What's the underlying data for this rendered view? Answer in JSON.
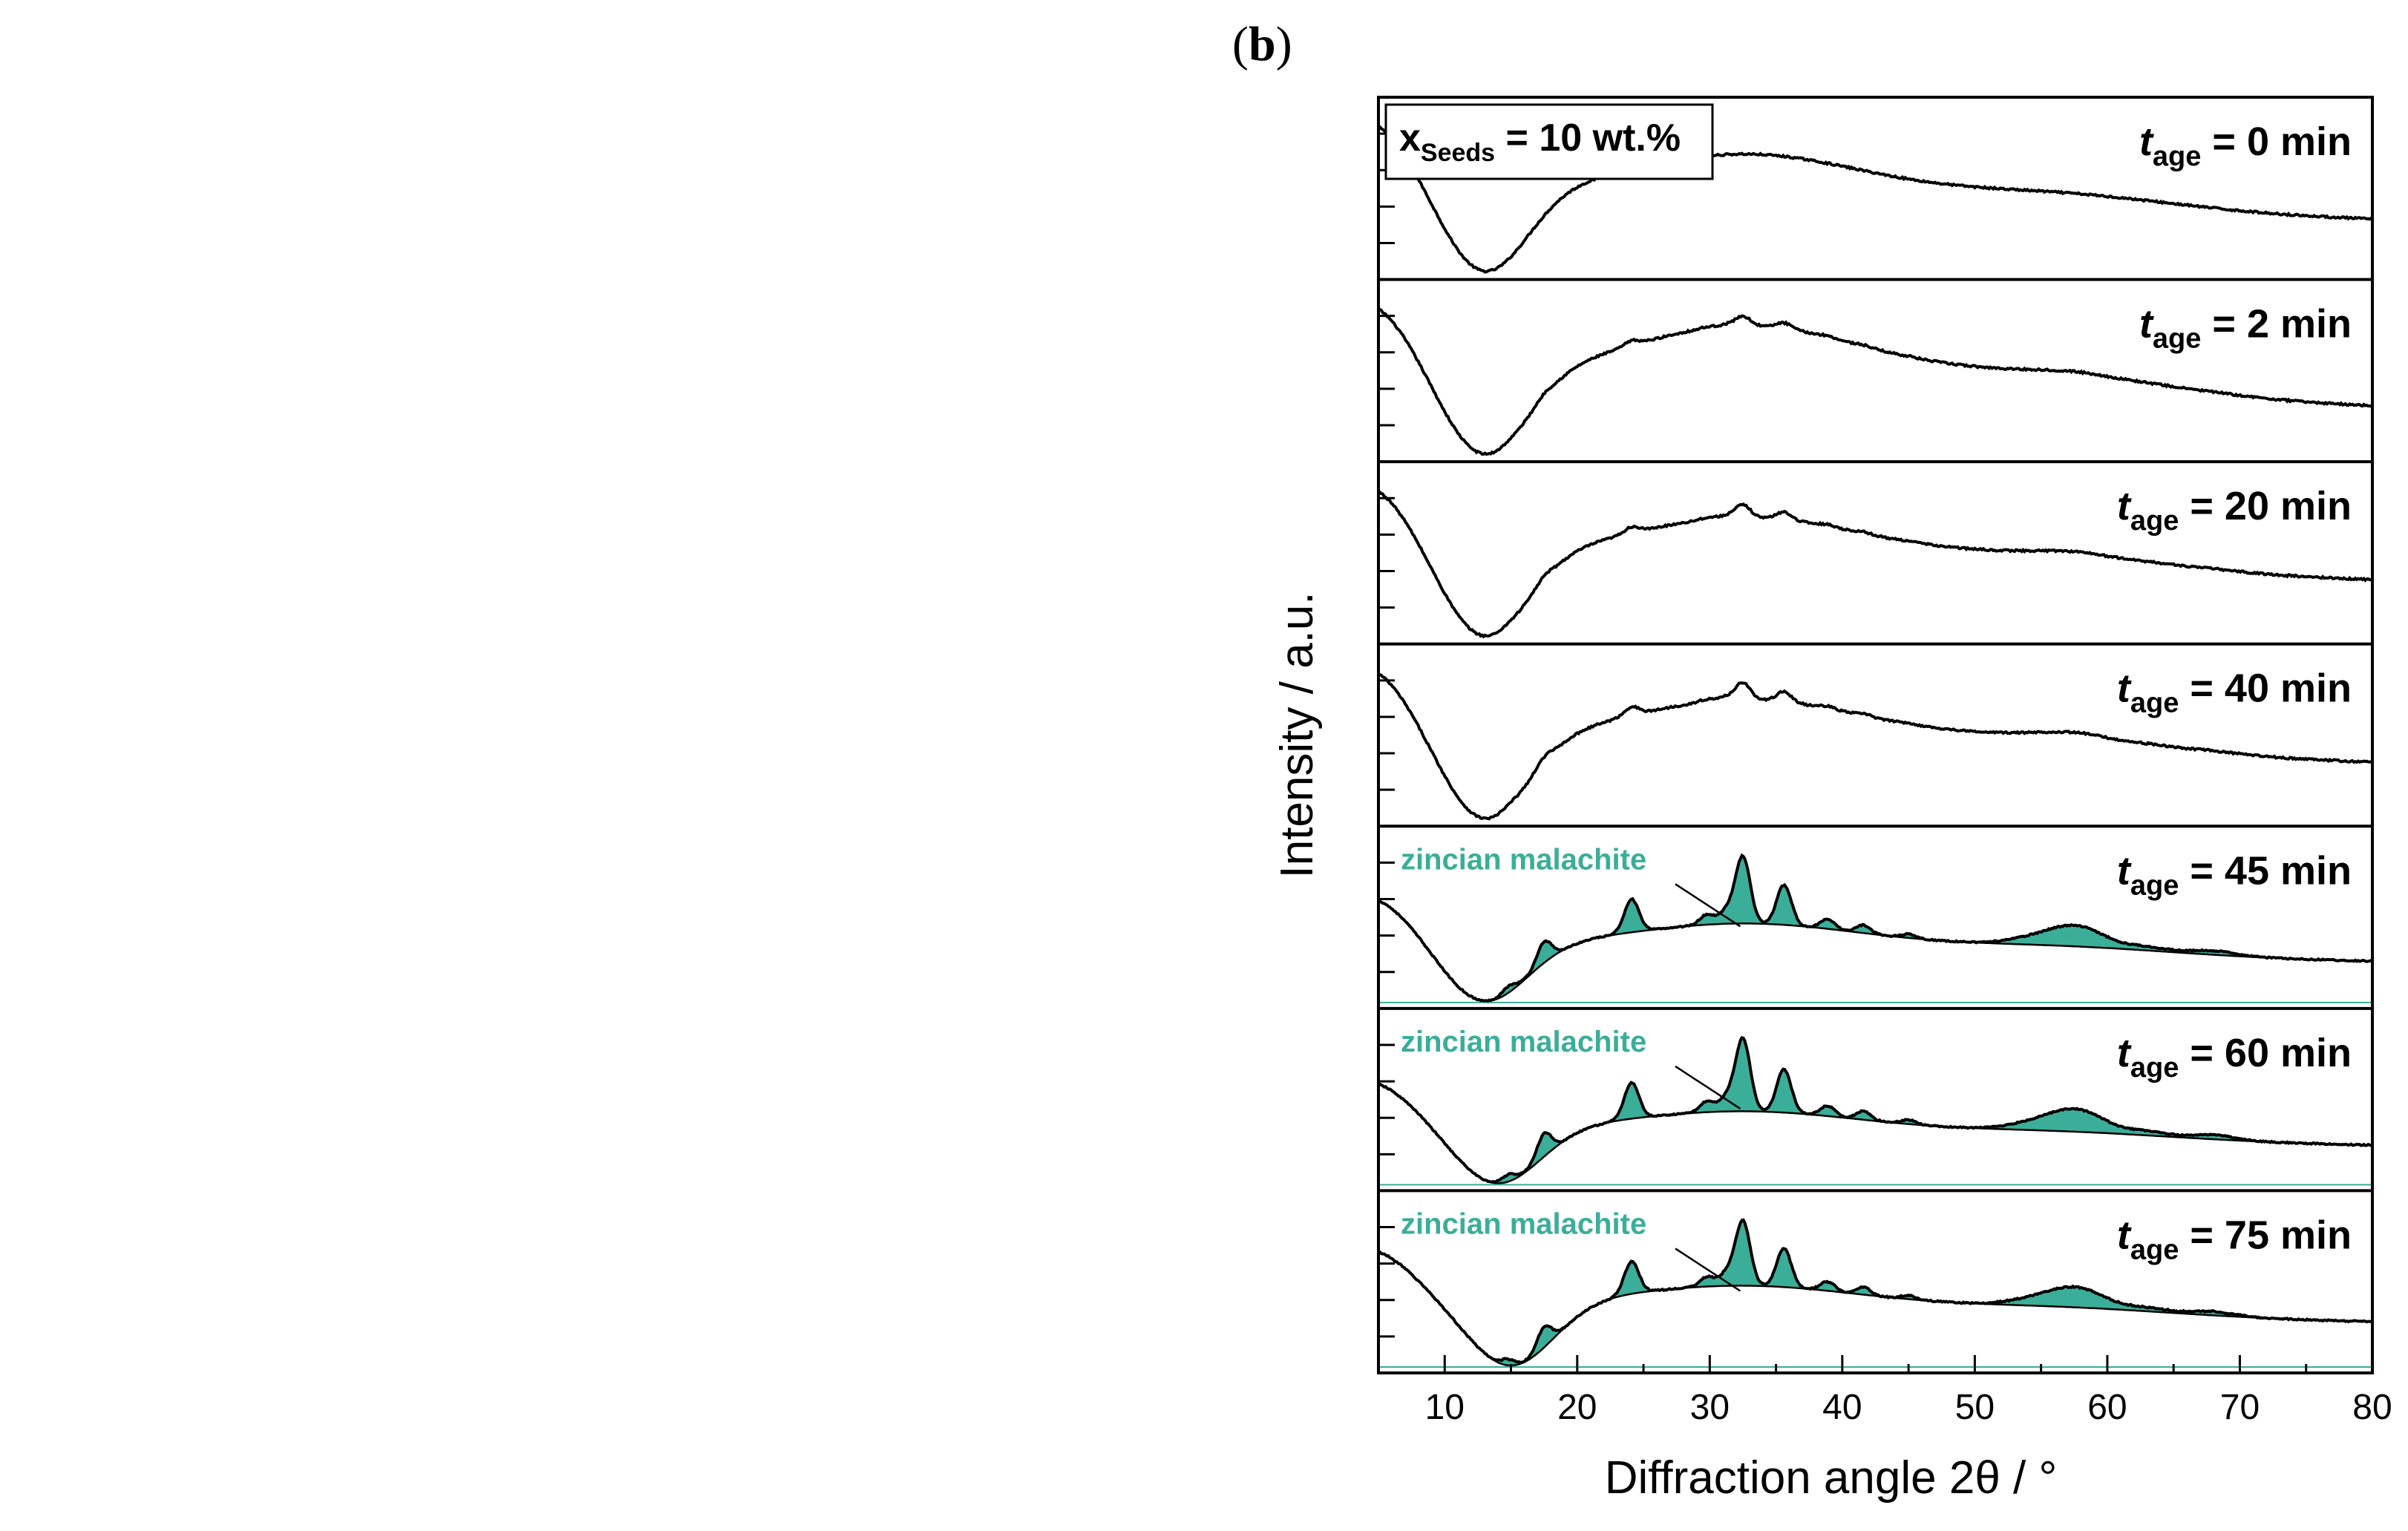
{
  "chart_data": [
    {
      "type": "line",
      "panel_label": "b",
      "seeds_label": "x",
      "seeds_sub": "Seeds",
      "seeds_value": "= 10 wt.%",
      "xlabel": "Diffraction angle 2θ / °",
      "ylabel": "Intensity / a.u.",
      "xlim": [
        5,
        80
      ],
      "xticks": [
        10,
        20,
        30,
        40,
        50,
        60,
        70,
        80
      ],
      "time_var": "t",
      "time_sub": "age",
      "series": [
        {
          "time_label": "= 0 min",
          "shaded": false,
          "pattern": {
            "amorphous": 0.55,
            "bias": 0.0,
            "hump": 0.3,
            "base_slope": -0.35,
            "dip": 13
          }
        },
        {
          "time_label": "= 2 min",
          "shaded": false,
          "pattern": {
            "amorphous": 0.62,
            "bias": 0.0,
            "hump": 0.38,
            "base_slope": -0.35,
            "dip": 13,
            "weak_peaks": 0.12
          }
        },
        {
          "time_label": "= 20 min",
          "shaded": false,
          "pattern": {
            "amorphous": 0.55,
            "bias": 0.0,
            "hump": 0.3,
            "base_slope": -0.3,
            "dip": 13,
            "weak_peaks": 0.16
          }
        },
        {
          "time_label": "= 40 min",
          "shaded": false,
          "pattern": {
            "amorphous": 0.55,
            "bias": 0.0,
            "hump": 0.3,
            "base_slope": -0.3,
            "dip": 13,
            "weak_peaks": 0.22
          }
        },
        {
          "time_label": "= 45 min",
          "shaded": true,
          "phase_label": "zincian malachite",
          "peak_scale": 0.62,
          "pattern": {
            "amorphous": 0.4,
            "bias": 0.0,
            "hump": 0.25,
            "base_slope": -0.4,
            "dip": 13
          }
        },
        {
          "time_label": "= 60 min",
          "shaded": true,
          "phase_label": "zincian malachite",
          "peak_scale": 0.7,
          "pattern": {
            "amorphous": 0.38,
            "bias": 0.0,
            "hump": 0.22,
            "base_slope": -0.45,
            "dip": 14
          }
        },
        {
          "time_label": "= 75 min",
          "shaded": true,
          "phase_label": "zincian malachite",
          "peak_scale": 0.55,
          "pattern": {
            "amorphous": 0.34,
            "bias": 0.0,
            "hump": 0.2,
            "base_slope": -0.5,
            "dip": 15
          }
        }
      ]
    }
  ],
  "phase_color": "#3aae99",
  "line_color": "#000000",
  "reflections_zincian_malachite": [
    {
      "two_theta": 14.8,
      "rel": 0.1
    },
    {
      "two_theta": 17.5,
      "rel": 0.32
    },
    {
      "two_theta": 24.1,
      "rel": 0.5
    },
    {
      "two_theta": 29.8,
      "rel": 0.15
    },
    {
      "two_theta": 31.3,
      "rel": 0.2
    },
    {
      "two_theta": 32.5,
      "rel": 1.0
    },
    {
      "two_theta": 35.6,
      "rel": 0.6
    },
    {
      "two_theta": 38.9,
      "rel": 0.14
    },
    {
      "two_theta": 41.6,
      "rel": 0.12
    },
    {
      "two_theta": 45.0,
      "rel": 0.06
    },
    {
      "two_theta": 53.5,
      "rel": 0.05
    },
    {
      "two_theta": 56.2,
      "rel": 0.12
    },
    {
      "two_theta": 58.4,
      "rel": 0.15
    },
    {
      "two_theta": 63.0,
      "rel": 0.05
    },
    {
      "two_theta": 68.0,
      "rel": 0.06
    }
  ]
}
